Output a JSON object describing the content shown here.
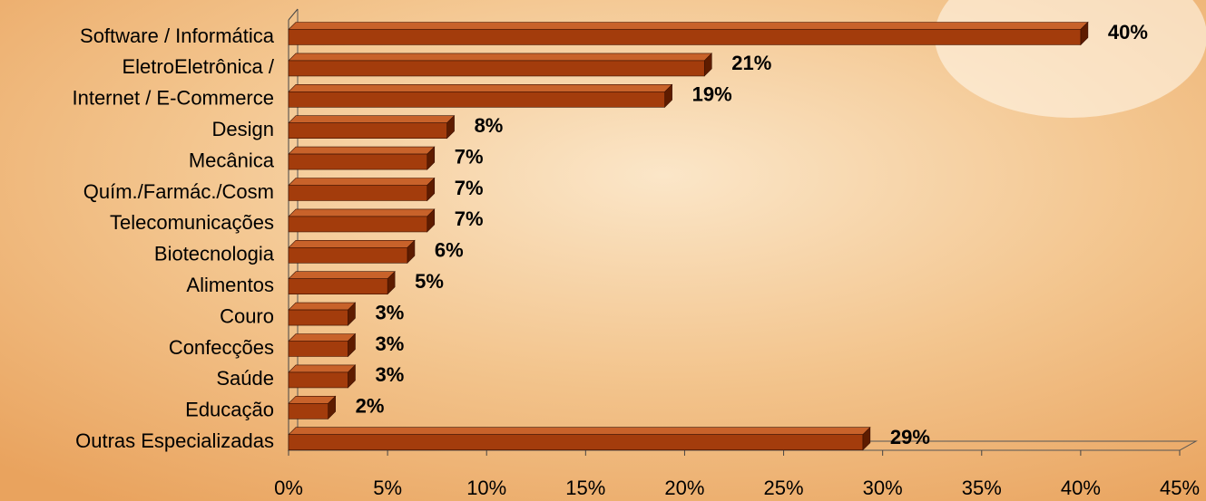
{
  "chart_data": {
    "type": "bar",
    "orientation": "horizontal",
    "categories": [
      "Software / Informática",
      "EletroEletrônica /",
      "Internet / E-Commerce",
      "Design",
      "Mecânica",
      "Quím./Farmác./Cosm",
      "Telecomunicações",
      "Biotecnologia",
      "Alimentos",
      "Couro",
      "Confecções",
      "Saúde",
      "Educação",
      "Outras Especializadas"
    ],
    "values": [
      40,
      21,
      19,
      8,
      7,
      7,
      7,
      6,
      5,
      3,
      3,
      3,
      2,
      29
    ],
    "value_labels": [
      "40%",
      "21%",
      "19%",
      "8%",
      "7%",
      "7%",
      "7%",
      "6%",
      "5%",
      "3%",
      "3%",
      "3%",
      "2%",
      "29%"
    ],
    "color": "#a33c0c",
    "xlim": [
      0,
      45
    ],
    "xticks": [
      {
        "value": 0,
        "label": "0%"
      },
      {
        "value": 5,
        "label": "5%"
      },
      {
        "value": 10,
        "label": "10%"
      },
      {
        "value": 15,
        "label": "15%"
      },
      {
        "value": 20,
        "label": "20%"
      },
      {
        "value": 25,
        "label": "25%"
      },
      {
        "value": 30,
        "label": "30%"
      },
      {
        "value": 35,
        "label": "35%"
      },
      {
        "value": 40,
        "label": "40%"
      },
      {
        "value": 45,
        "label": "45%"
      }
    ],
    "grid": false
  }
}
